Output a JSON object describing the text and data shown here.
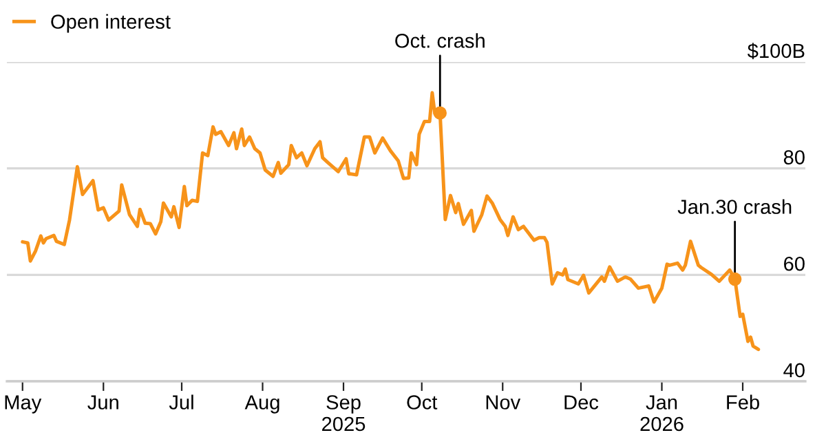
{
  "chart_data": {
    "type": "line",
    "x": [
      "2025-05-01",
      "2025-05-03",
      "2025-05-04",
      "2025-05-06",
      "2025-05-08",
      "2025-05-09",
      "2025-05-10",
      "2025-05-13",
      "2025-05-14",
      "2025-05-17",
      "2025-05-19",
      "2025-05-22",
      "2025-05-24",
      "2025-05-26",
      "2025-05-28",
      "2025-05-30",
      "2025-06-01",
      "2025-06-03",
      "2025-06-07",
      "2025-06-08",
      "2025-06-11",
      "2025-06-14",
      "2025-06-15",
      "2025-06-17",
      "2025-06-19",
      "2025-06-21",
      "2025-06-23",
      "2025-06-24",
      "2025-06-27",
      "2025-06-28",
      "2025-06-30",
      "2025-07-02",
      "2025-07-03",
      "2025-07-05",
      "2025-07-07",
      "2025-07-09",
      "2025-07-11",
      "2025-07-13",
      "2025-07-14",
      "2025-07-16",
      "2025-07-19",
      "2025-07-21",
      "2025-07-22",
      "2025-07-24",
      "2025-07-25",
      "2025-07-27",
      "2025-07-29",
      "2025-07-31",
      "2025-08-02",
      "2025-08-05",
      "2025-08-07",
      "2025-08-08",
      "2025-08-11",
      "2025-08-12",
      "2025-08-14",
      "2025-08-16",
      "2025-08-18",
      "2025-08-21",
      "2025-08-23",
      "2025-08-24",
      "2025-08-26",
      "2025-08-30",
      "2025-09-02",
      "2025-09-03",
      "2025-09-06",
      "2025-09-09",
      "2025-09-11",
      "2025-09-13",
      "2025-09-16",
      "2025-09-19",
      "2025-09-22",
      "2025-09-24",
      "2025-09-26",
      "2025-09-27",
      "2025-09-29",
      "2025-09-30",
      "2025-10-02",
      "2025-10-04",
      "2025-10-05",
      "2025-10-06",
      "2025-10-08",
      "2025-10-10",
      "2025-10-12",
      "2025-10-14",
      "2025-10-15",
      "2025-10-17",
      "2025-10-20",
      "2025-10-21",
      "2025-10-24",
      "2025-10-26",
      "2025-10-28",
      "2025-10-31",
      "2025-11-02",
      "2025-11-03",
      "2025-11-05",
      "2025-11-07",
      "2025-11-09",
      "2025-11-11",
      "2025-11-13",
      "2025-11-15",
      "2025-11-17",
      "2025-11-18",
      "2025-11-20",
      "2025-11-22",
      "2025-11-24",
      "2025-11-25",
      "2025-11-26",
      "2025-11-30",
      "2025-12-02",
      "2025-12-04",
      "2025-12-09",
      "2025-12-10",
      "2025-12-12",
      "2025-12-15",
      "2025-12-18",
      "2025-12-20",
      "2025-12-23",
      "2025-12-27",
      "2025-12-29",
      "2026-01-01",
      "2026-01-03",
      "2026-01-04",
      "2026-01-07",
      "2026-01-09",
      "2026-01-10",
      "2026-01-12",
      "2026-01-15",
      "2026-01-16",
      "2026-01-20",
      "2026-01-23",
      "2026-01-27",
      "2026-01-29",
      "2026-01-31",
      "2026-02-01",
      "2026-02-03",
      "2026-02-04",
      "2026-02-05",
      "2026-02-07"
    ],
    "series": [
      {
        "name": "Open interest",
        "color": "#f7931a",
        "values": [
          66.2,
          66,
          62.6,
          64.5,
          67.3,
          66,
          66.8,
          67.4,
          66.3,
          65.7,
          70.3,
          80.3,
          75.1,
          76.4,
          77.7,
          72.2,
          72.6,
          70.3,
          72,
          76.9,
          71.3,
          69.1,
          72.3,
          69.7,
          69.6,
          67.7,
          70,
          73.5,
          70.9,
          72.8,
          68.9,
          76.6,
          73,
          74,
          73.8,
          82.9,
          82.4,
          87.8,
          86.4,
          86.9,
          84.3,
          86.7,
          83.7,
          87.4,
          84.3,
          85.9,
          83.7,
          82.9,
          79.7,
          78.5,
          81.1,
          79.1,
          80.7,
          84.3,
          82,
          82.9,
          80.5,
          83.7,
          85,
          82,
          81.1,
          79.4,
          81.8,
          79,
          78.8,
          85.9,
          85.9,
          82.9,
          85.7,
          83.3,
          81.4,
          78.1,
          78.2,
          82.9,
          80.7,
          86.4,
          88.8,
          88.8,
          94.2,
          90.3,
          90.4,
          70.4,
          74.9,
          71.7,
          73.4,
          69.5,
          72.1,
          68.2,
          71.3,
          74.8,
          73.5,
          70.4,
          69.1,
          67.4,
          70.9,
          68.5,
          69.1,
          67.8,
          66.5,
          67,
          67,
          66.1,
          58.3,
          60.4,
          60,
          61.1,
          59.1,
          58.3,
          59.9,
          56.6,
          59.6,
          58.8,
          61.5,
          58.8,
          59.6,
          59.2,
          57.5,
          57.9,
          54.9,
          57.5,
          62,
          61.8,
          62.2,
          60.9,
          61.8,
          66.3,
          61.8,
          61.4,
          60.1,
          58.8,
          60.9,
          59.2,
          52.2,
          52.6,
          47.5,
          48.3,
          46.6,
          46
        ]
      }
    ],
    "xlim": [
      "2025-04-25",
      "2026-02-25"
    ],
    "xticks": [
      {
        "value": "2025-05-01",
        "label": "May"
      },
      {
        "value": "2025-06-01",
        "label": "Jun"
      },
      {
        "value": "2025-07-01",
        "label": "Jul"
      },
      {
        "value": "2025-08-01",
        "label": "Aug"
      },
      {
        "value": "2025-09-01",
        "label": "Sep\n2025"
      },
      {
        "value": "2025-10-01",
        "label": "Oct"
      },
      {
        "value": "2025-11-01",
        "label": "Nov"
      },
      {
        "value": "2025-12-01",
        "label": "Dec"
      },
      {
        "value": "2026-01-01",
        "label": "Jan\n2026"
      },
      {
        "value": "2026-02-01",
        "label": "Feb"
      }
    ],
    "ylim": [
      40,
      100
    ],
    "yticks": [
      40,
      60,
      80,
      {
        "value": 100,
        "label": "$100B"
      }
    ],
    "grid": "y",
    "legend": "top left",
    "annotations": [
      {
        "text": "Oct. crash",
        "x": "2025-10-08",
        "y": 90.4
      },
      {
        "text": "Jan.30 crash",
        "x": "2026-01-29",
        "y": 59.2
      }
    ]
  }
}
